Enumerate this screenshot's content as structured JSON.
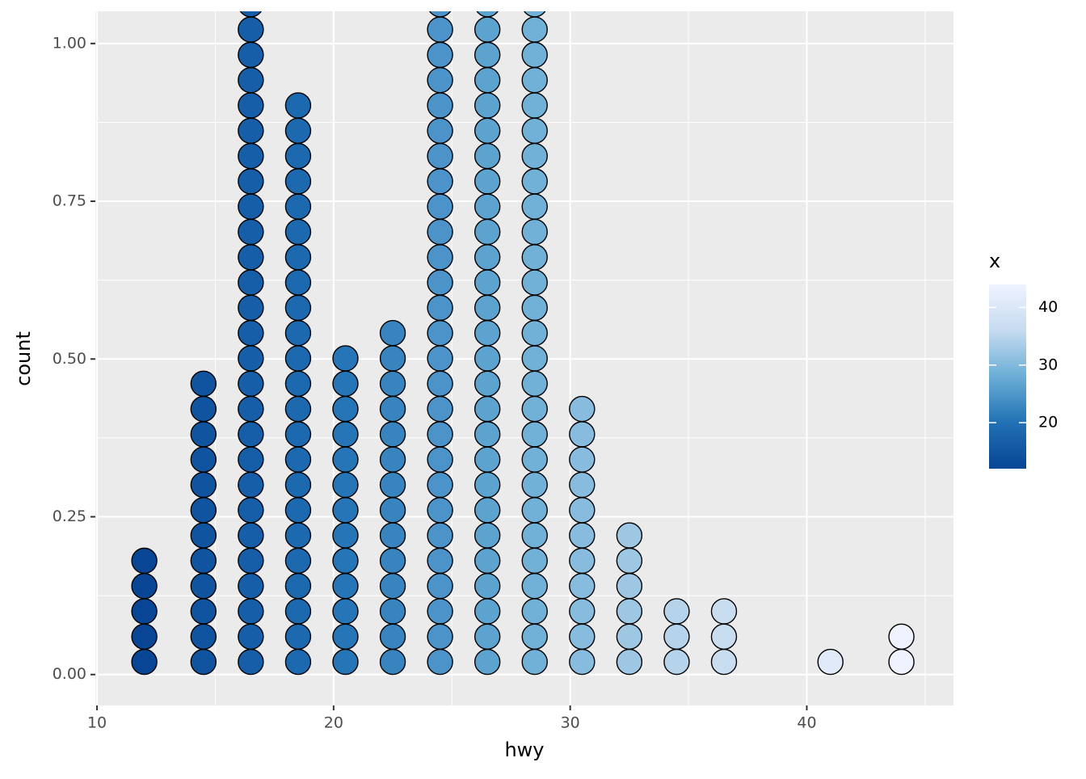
{
  "chart_data": {
    "type": "dotplot",
    "x_label": "hwy",
    "y_label": "count",
    "x": [
      12,
      14.5,
      16.5,
      18.5,
      20.5,
      22.5,
      24.5,
      26.5,
      28.5,
      30.5,
      32.5,
      34.5,
      36.5,
      41,
      44
    ],
    "values": [
      5,
      12,
      27,
      23,
      13,
      14,
      27,
      27,
      27,
      11,
      6,
      3,
      3,
      1,
      2
    ],
    "xlim": [
      9.93,
      46.2
    ],
    "xticks": [
      10,
      20,
      30,
      40
    ],
    "ylim": [
      -0.049,
      1.051
    ],
    "yticks": [
      {
        "value": 0,
        "label": "0.00"
      },
      {
        "value": 0.25,
        "label": "0.25"
      },
      {
        "value": 0.5,
        "label": "0.50"
      },
      {
        "value": 0.75,
        "label": "0.75"
      },
      {
        "value": 1,
        "label": "1.00"
      }
    ],
    "grid": true,
    "colorscale": [
      "#084594",
      "#2171b5",
      "#6baed6",
      "#c6dbef",
      "#eff3ff"
    ],
    "legend": {
      "title": "x",
      "lim": [
        12,
        44
      ],
      "ticks": [
        20,
        30,
        40
      ]
    }
  }
}
